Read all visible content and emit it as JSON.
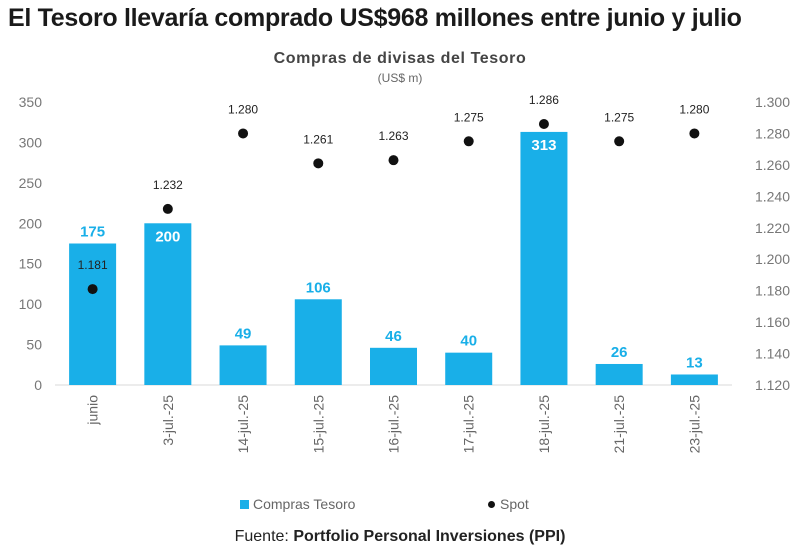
{
  "headline": "El Tesoro llevaría comprado US$968 millones entre junio y julio",
  "chart_data": {
    "type": "bar",
    "title": "Compras de divisas del Tesoro",
    "subtitle": "(US$ m)",
    "categories": [
      "junio",
      "3-jul.-25",
      "14-jul.-25",
      "15-jul.-25",
      "16-jul.-25",
      "17-jul.-25",
      "18-jul.-25",
      "21-jul.-25",
      "23-jul.-25"
    ],
    "series": [
      {
        "name": "Compras Tesoro",
        "type": "bar",
        "axis": "left",
        "color": "#19afe8",
        "values": [
          175,
          200,
          49,
          106,
          46,
          40,
          313,
          26,
          13
        ]
      },
      {
        "name": "Spot",
        "type": "scatter",
        "axis": "right",
        "color": "#111111",
        "values": [
          1181,
          1232,
          1280,
          1261,
          1263,
          1275,
          1286,
          1275,
          1280
        ],
        "labels": [
          "1.181",
          "1.232",
          "1.280",
          "1.261",
          "1.263",
          "1.275",
          "1.286",
          "1.275",
          "1.280"
        ]
      }
    ],
    "bar_labels": [
      "175",
      "200",
      "49",
      "106",
      "46",
      "40",
      "313",
      "26",
      "13"
    ],
    "ylim_left": [
      0,
      350
    ],
    "yticks_left": [
      "0",
      "50",
      "100",
      "150",
      "200",
      "250",
      "300",
      "350"
    ],
    "ylim_right": [
      1120,
      1300
    ],
    "yticks_right": [
      "1.120",
      "1.140",
      "1.160",
      "1.180",
      "1.200",
      "1.220",
      "1.240",
      "1.260",
      "1.280",
      "1.300"
    ],
    "grid": false,
    "legend_position": "bottom"
  },
  "legend": {
    "bars": "Compras Tesoro",
    "dots": "Spot"
  },
  "source": {
    "prefix": "Fuente:",
    "name": "Portfolio Personal Inversiones (PPI)"
  }
}
